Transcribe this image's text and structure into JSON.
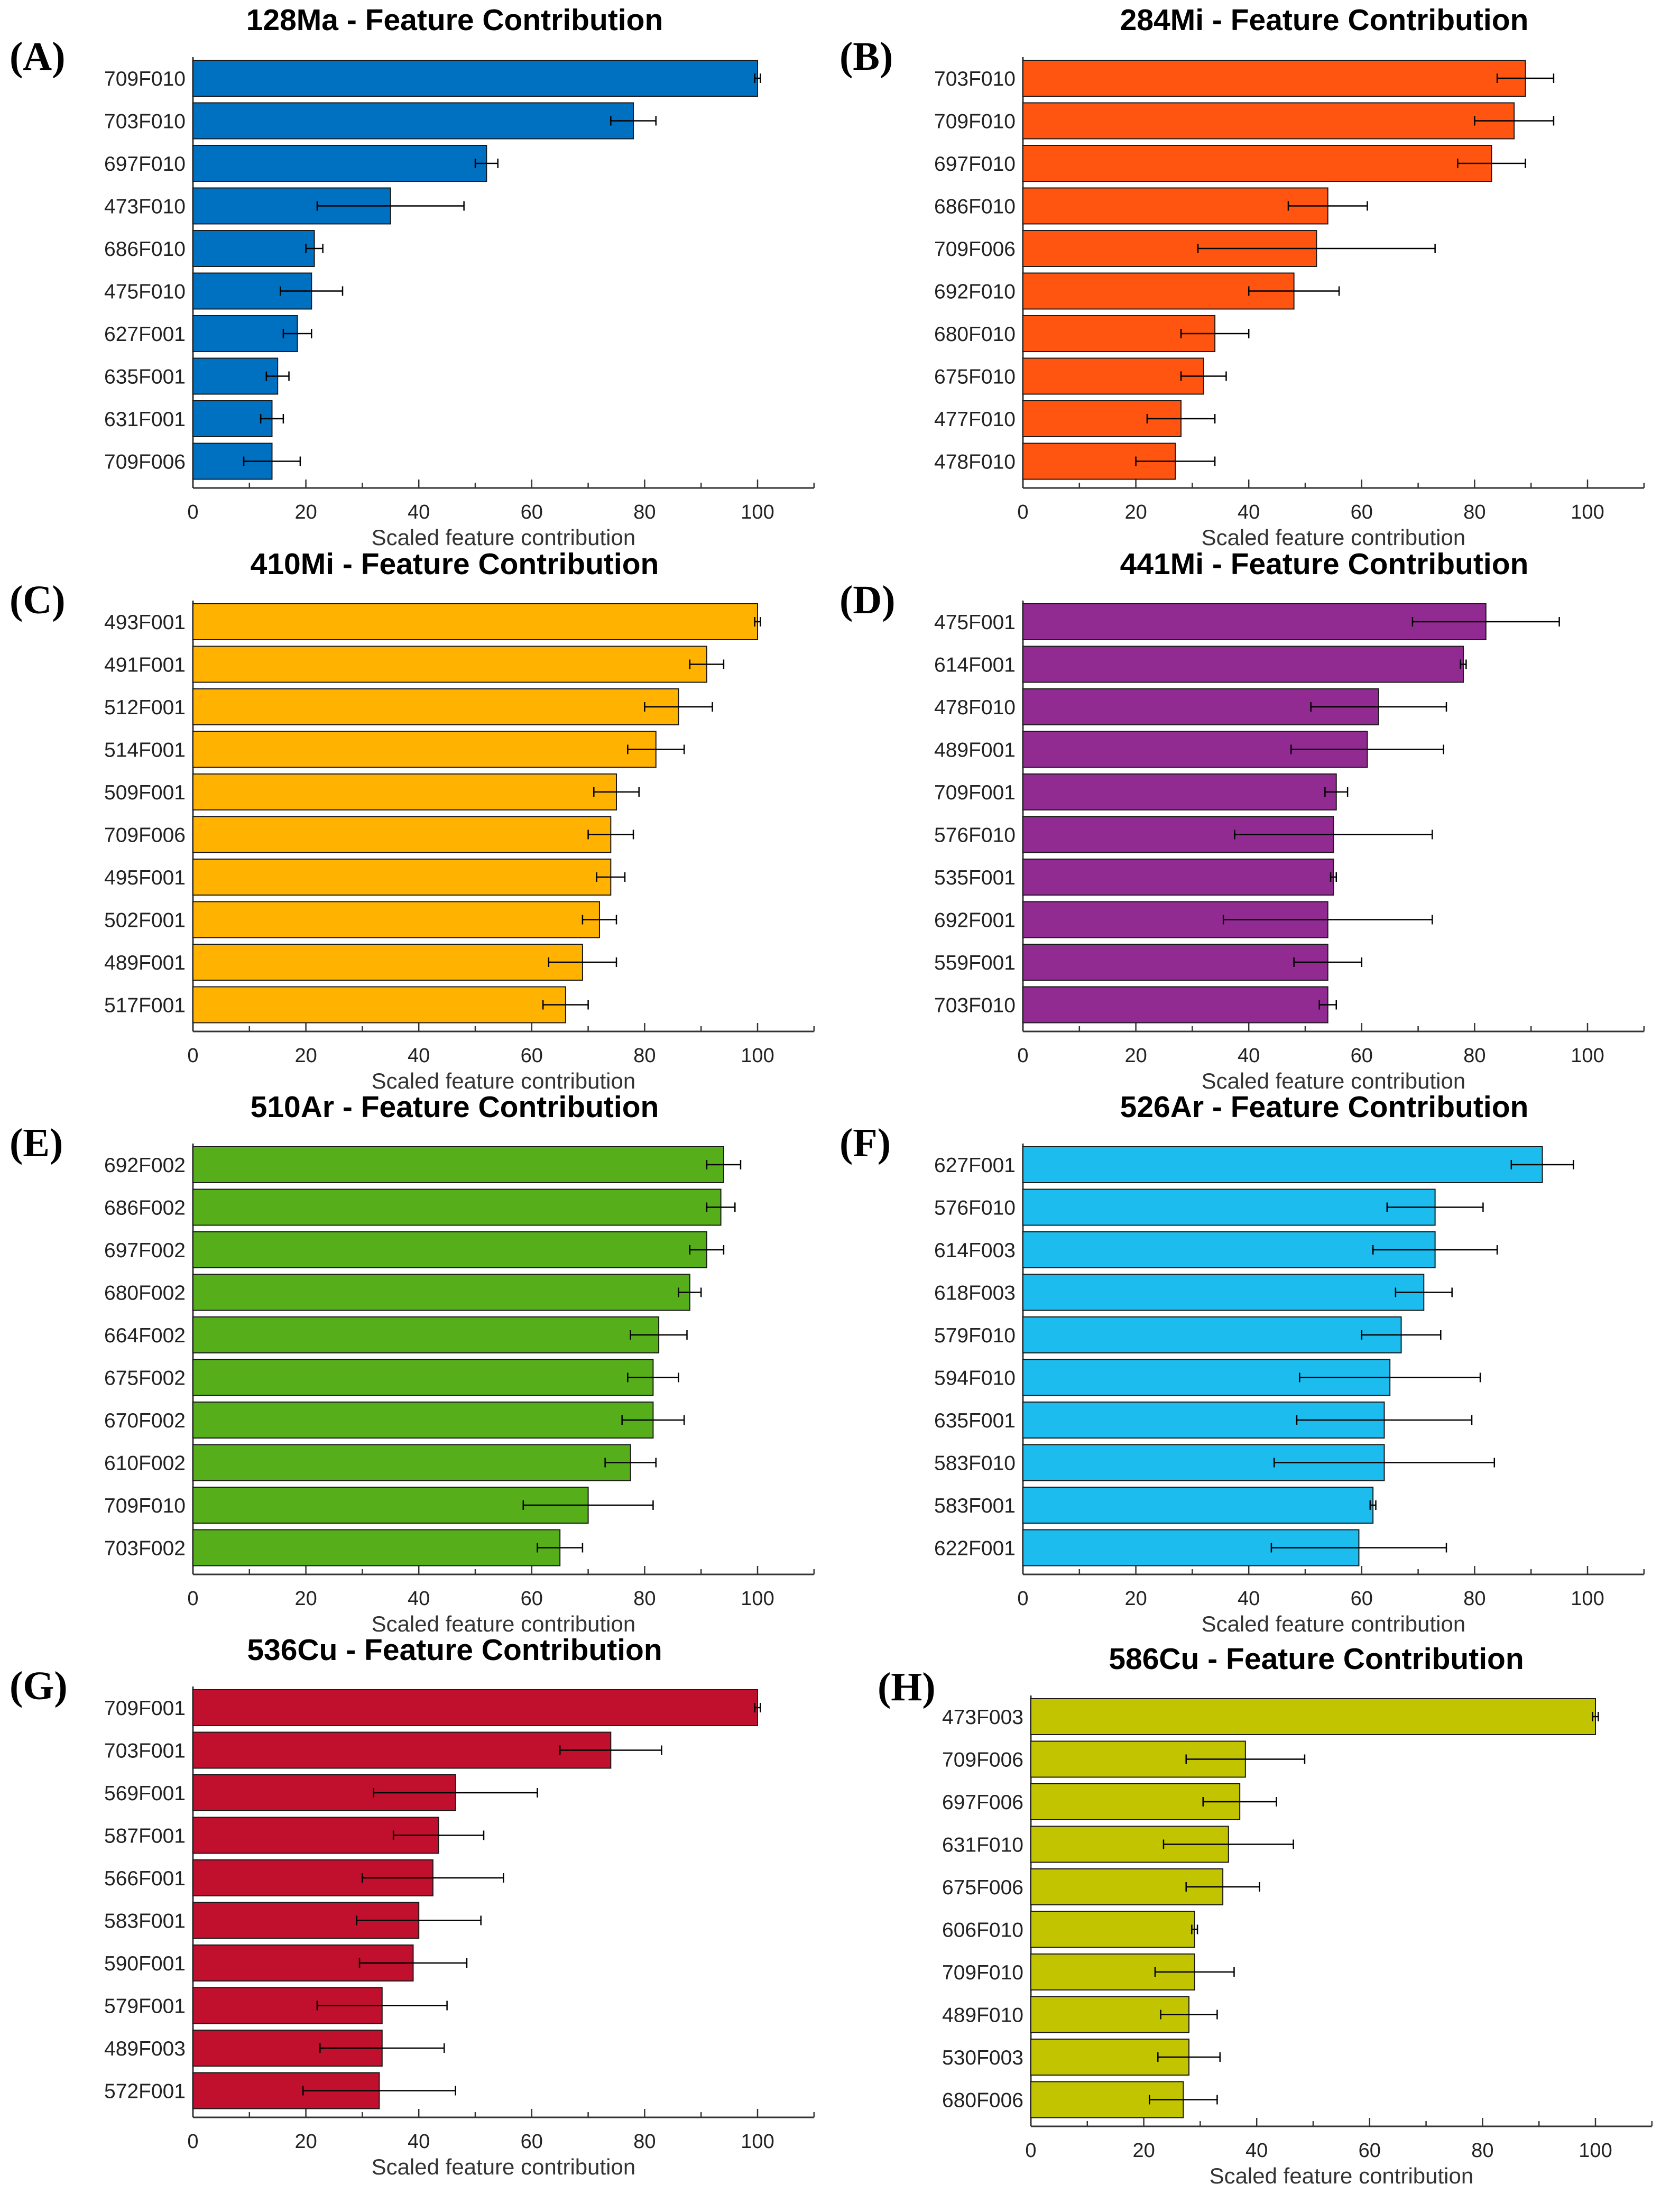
{
  "chart_data": [
    {
      "type": "bar",
      "orientation": "horizontal",
      "panel_label": "(A)",
      "title": "128Ma - Feature Contribution",
      "xlabel": "Scaled feature contribution",
      "xlim": [
        0,
        110
      ],
      "xticks": [
        "0",
        "20",
        "40",
        "60",
        "80",
        "100"
      ],
      "color": "#0070C0",
      "categories": [
        "709F010",
        "703F010",
        "697F010",
        "473F010",
        "686F010",
        "475F010",
        "627F001",
        "635F001",
        "631F001",
        "709F006"
      ],
      "values": [
        100,
        78,
        52,
        35,
        21.5,
        21,
        18.5,
        15,
        14,
        14
      ],
      "error": [
        0.5,
        4,
        2,
        13,
        1.5,
        5.5,
        2.5,
        2,
        2,
        5
      ]
    },
    {
      "type": "bar",
      "orientation": "horizontal",
      "panel_label": "(B)",
      "title": "284Mi - Feature Contribution",
      "xlabel": "Scaled feature contribution",
      "xlim": [
        0,
        110
      ],
      "xticks": [
        "0",
        "20",
        "40",
        "60",
        "80",
        "100"
      ],
      "color": "#FF5511",
      "categories": [
        "703F010",
        "709F010",
        "697F010",
        "686F010",
        "709F006",
        "692F010",
        "680F010",
        "675F010",
        "477F010",
        "478F010"
      ],
      "values": [
        89,
        87,
        83,
        54,
        52,
        48,
        34,
        32,
        28,
        27
      ],
      "error": [
        5,
        7,
        6,
        7,
        21,
        8,
        6,
        4,
        6,
        7
      ]
    },
    {
      "type": "bar",
      "orientation": "horizontal",
      "panel_label": "(C)",
      "title": "410Mi - Feature Contribution",
      "xlabel": "Scaled feature contribution",
      "xlim": [
        0,
        110
      ],
      "xticks": [
        "0",
        "20",
        "40",
        "60",
        "80",
        "100"
      ],
      "color": "#FFB300",
      "categories": [
        "493F001",
        "491F001",
        "512F001",
        "514F001",
        "509F001",
        "709F006",
        "495F001",
        "502F001",
        "489F001",
        "517F001"
      ],
      "values": [
        100,
        91,
        86,
        82,
        75,
        74,
        74,
        72,
        69,
        66
      ],
      "error": [
        0.5,
        3,
        6,
        5,
        4,
        4,
        2.5,
        3,
        6,
        4
      ]
    },
    {
      "type": "bar",
      "orientation": "horizontal",
      "panel_label": "(D)",
      "title": "441Mi - Feature Contribution",
      "xlabel": "Scaled feature contribution",
      "xlim": [
        0,
        110
      ],
      "xticks": [
        "0",
        "20",
        "40",
        "60",
        "80",
        "100"
      ],
      "color": "#922B91",
      "categories": [
        "475F001",
        "614F001",
        "478F010",
        "489F001",
        "709F001",
        "576F010",
        "535F001",
        "692F001",
        "559F001",
        "703F010"
      ],
      "values": [
        82,
        78,
        63,
        61,
        55.5,
        55,
        55,
        54,
        54,
        54
      ],
      "error": [
        13,
        0.5,
        12,
        13.5,
        2,
        17.5,
        0.5,
        18.5,
        6,
        1.5
      ]
    },
    {
      "type": "bar",
      "orientation": "horizontal",
      "panel_label": "(E)",
      "title": "510Ar - Feature Contribution",
      "xlabel": "Scaled feature contribution",
      "xlim": [
        0,
        110
      ],
      "xticks": [
        "0",
        "20",
        "40",
        "60",
        "80",
        "100"
      ],
      "color": "#56AE1A",
      "categories": [
        "692F002",
        "686F002",
        "697F002",
        "680F002",
        "664F002",
        "675F002",
        "670F002",
        "610F002",
        "709F010",
        "703F002"
      ],
      "values": [
        94,
        93.5,
        91,
        88,
        82.5,
        81.5,
        81.5,
        77.5,
        70,
        65
      ],
      "error": [
        3,
        2.5,
        3,
        2,
        5,
        4.5,
        5.5,
        4.5,
        11.5,
        4
      ]
    },
    {
      "type": "bar",
      "orientation": "horizontal",
      "panel_label": "(F)",
      "title": "526Ar - Feature Contribution",
      "xlabel": "Scaled feature contribution",
      "xlim": [
        0,
        110
      ],
      "xticks": [
        "0",
        "20",
        "40",
        "60",
        "80",
        "100"
      ],
      "color": "#1CBCEE",
      "categories": [
        "627F001",
        "576F010",
        "614F003",
        "618F003",
        "579F010",
        "594F010",
        "635F001",
        "583F010",
        "583F001",
        "622F001"
      ],
      "values": [
        92,
        73,
        73,
        71,
        67,
        65,
        64,
        64,
        62,
        59.5
      ],
      "error": [
        5.5,
        8.5,
        11,
        5,
        7,
        16,
        15.5,
        19.5,
        0.5,
        15.5
      ]
    },
    {
      "type": "bar",
      "orientation": "horizontal",
      "panel_label": "(G)",
      "title": "536Cu - Feature Contribution",
      "xlabel": "Scaled feature contribution",
      "xlim": [
        0,
        110
      ],
      "xticks": [
        "0",
        "20",
        "40",
        "60",
        "80",
        "100"
      ],
      "color": "#C0102E",
      "categories": [
        "709F001",
        "703F001",
        "569F001",
        "587F001",
        "566F001",
        "583F001",
        "590F001",
        "579F001",
        "489F003",
        "572F001"
      ],
      "values": [
        100,
        74,
        46.5,
        43.5,
        42.5,
        40,
        39,
        33.5,
        33.5,
        33
      ],
      "error": [
        0.5,
        9,
        14.5,
        8,
        12.5,
        11,
        9.5,
        11.5,
        11,
        13.5
      ]
    },
    {
      "type": "bar",
      "orientation": "horizontal",
      "panel_label": "(H)",
      "title": "586Cu - Feature Contribution",
      "xlabel": "Scaled feature contribution",
      "xlim": [
        0,
        110
      ],
      "xticks": [
        "0",
        "20",
        "40",
        "60",
        "80",
        "100"
      ],
      "color": "#C3C400",
      "categories": [
        "473F003",
        "709F006",
        "697F006",
        "631F010",
        "675F006",
        "606F010",
        "709F010",
        "489F010",
        "530F003",
        "680F006"
      ],
      "values": [
        100,
        38,
        37,
        35,
        34,
        29,
        29,
        28,
        28,
        27
      ],
      "error": [
        0.5,
        10.5,
        6.5,
        11.5,
        6.5,
        0.5,
        7,
        5,
        5.5,
        6
      ]
    }
  ]
}
